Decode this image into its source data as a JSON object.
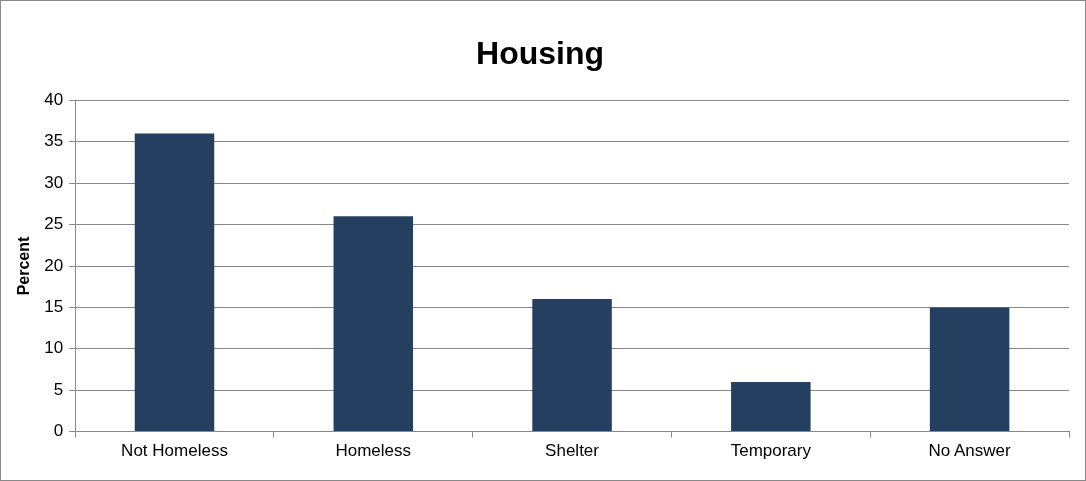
{
  "chart_data": {
    "type": "bar",
    "title": "Housing",
    "ylabel": "Percent",
    "categories": [
      "Not Homeless",
      "Homeless",
      "Shelter",
      "Temporary",
      "No Answer"
    ],
    "values": [
      36,
      26,
      16,
      6,
      15
    ],
    "color": "#243f60",
    "ylim": [
      0,
      40
    ],
    "yticks": [
      0,
      5,
      10,
      15,
      20,
      25,
      30,
      35,
      40
    ],
    "grid": "y",
    "legend": false
  }
}
